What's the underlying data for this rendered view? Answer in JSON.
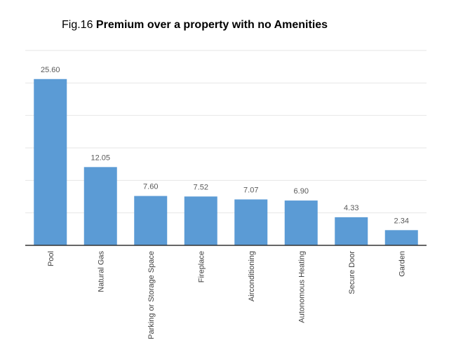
{
  "figure": {
    "number": "Fig.16",
    "title": "Premium over a property with no Amenities"
  },
  "chart_data": {
    "type": "bar",
    "title": "Premium over a property with no Amenities",
    "categories": [
      "Pool",
      "Natural Gas",
      "Parking or Storage Space",
      "Fireplace",
      "Airconditioning",
      "Autonomous Heating",
      "Secure Door",
      "Garden"
    ],
    "values": [
      25.6,
      12.05,
      7.6,
      7.52,
      7.07,
      6.9,
      4.33,
      2.34
    ],
    "value_labels": [
      "25.60",
      "12.05",
      "7.60",
      "7.52",
      "7.07",
      "6.90",
      "4.33",
      "2.34"
    ],
    "xlabel": "",
    "ylabel": "",
    "ylim": [
      0,
      30
    ],
    "grid": true,
    "bar_color": "#5b9bd5"
  }
}
